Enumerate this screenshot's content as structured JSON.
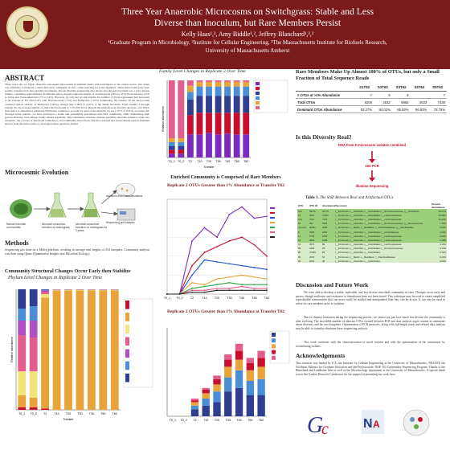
{
  "header": {
    "title_line1": "Three Year Anaerobic Microcosms on Switchgrass: Stable and Less",
    "title_line2": "Diverse than Inoculum, but Rare Members Persist",
    "authors": "Kelly Haas¹,², Amy Biddle¹,², Jeffrey Blanchard¹,²,³",
    "affil_line1": "¹Graduate Program in Microbiology, ²Institute for Cellular Engineering, ³The Massachusetts Institute for Biofuels Research,",
    "affil_line2": "University of Massachusetts Amherst"
  },
  "abstract": {
    "heading": "ABSTRACT",
    "text": "Three years ago, we began anaerobic soil-seeded microcosms in minimal media with switchgrass as the carbon source. Our intent was ultimately to maintain a stable microbial community in vitro, while selecting for active members. These microcosms have been serially transferred in five parallel experiments. Recent Illumina sequencing data shows that the soil inoculum was a very diverse sample, containing approximately 30 different phyla, though composed mainly of Acidobacteria (26% to 41%) Proteobacteria (15% to 33%), and Verrucomicrobia (7% to 24%). However, by only the second transfer, the number of phyla represented had decreased to an average of 8.6 (SD=1.67) with Proteobacteria (~3%) and Firmicutes (~95%) dominating. By transfer 30 the microcosms consisted almost entirely of Firmicutes (>99%), though only 0.96% to 0.97% of the initial inoculum. From transfer 2 through transfer 62, the average number of phyla had decreased to 7.55 (SD=0.21). Despite the phylum level diversity decrease, rare OTUs (less than 1% abundance) within the Firmicutes continue to account for most of the diversity we see (~97% of OTUs) at transfer 62. Through serial transfer, we have developed a stable and presumably specialized microbial community, while maintaining high species diversity, even among closely related organisms. This community structure conjures questions about the existence of the rare biosphere, the concept of functional redundancy, and community interactions. We have isolated and characterized several abundant species from the microcosms, to investigate these questions further."
  },
  "evolution": {
    "heading": "Microcosmic Evolution",
    "labels": [
      "Natural microbial communities",
      "Microbial consortium selection on switchgrass",
      "Microbial consortium evolution on switchgrass for 3 years",
      "Isolations and Characterizations",
      "Sequencing and analysis"
    ]
  },
  "methods": {
    "heading": "Methods",
    "text": "Sequencing was done on a MiSeq platform, resulting in average read lengths of 254 basepairs. Community analysis was done using Qiime (Quantitative Insights into Microbial Ecology)."
  },
  "phylum": {
    "heading": "Community Structural Changes Occur Early  then Stabilize",
    "subtitle": "Phylum Level Changes in Replicate 2 Over Time",
    "ylabel": "Relative abundance",
    "xlabel": "Transfer"
  },
  "family": {
    "subtitle": "Family Level Changes in Replicate 2 Over Time",
    "ylabel": "Relative abundance",
    "xlabel": "Transfer"
  },
  "enriched": {
    "heading": "Enriched Community is Comprised of  Rare Members",
    "subtitle": "Replicate 2 OTUs Greater than 1% Abundance at Transfer T62"
  },
  "lesser": {
    "subtitle": "Replicate 2 OTUs Greater than 1% Abundance at Transfer T62"
  },
  "rare": {
    "heading": "Rare Members Make Up Almost 100% of OTUs, but only a Small Fraction of Total Sequence Reads",
    "columns": [
      "",
      "S1T62",
      "S2T62",
      "S3T62",
      "S4T62",
      "S5T62"
    ],
    "rows": [
      [
        "# OTUs at >1% Abundance",
        "7",
        "9",
        "8",
        "",
        "7"
      ],
      [
        "Total OTUs",
        "6208",
        "4632",
        "6962",
        "4633",
        "7438"
      ],
      [
        "Dominant OTUs Abundance",
        "83.27%",
        "84.02%",
        "85.83%",
        "86.83%",
        "78.75%"
      ]
    ]
  },
  "diversity": {
    "heading": "Is this Diversity Real?",
    "box_lines": [
      "DNA from 8 microcosm isolates combined"
    ],
    "arrow_label": "16S PCR",
    "result": "Illumina Sequencing"
  },
  "shift": {
    "caption_bold": "Table 1.",
    "caption_ital": " The Shift Between Real and Artifactual OTUs",
    "headers": [
      "OTU",
      "OTU ID",
      "Abundance",
      "Taxonomy",
      "Percent Abundance"
    ],
    "rows": [
      [
        "104",
        "897s5",
        "24778",
        "f__Firmicutes; c__Clostridia; o__Clostridiales; f__Ruminococcaceae; g__Clostridium",
        "45.01%"
      ],
      [
        "16",
        "4501",
        "11054",
        "f__Firmicutes; c__Clostridia; o__Clostridiales; f__Lachnospiraceae",
        "20.08%"
      ],
      [
        "124",
        "7501",
        "7403",
        "f__Firmicutes; c__Clostridia; o__Clostridiales; f__Lachnospiraceae",
        "13.44%"
      ],
      [
        "18",
        "302",
        "3940",
        "f__Firmicutes; c__Clostridia; o__Clostridiales; f__Ruminococcaceae; g__Ruminococcus",
        "7.16%"
      ],
      [
        "4 (unclr)",
        "8209s",
        "2938",
        "f__Firmicutes; c__Bacilli; o__Bacillales; f__Paenibacillaceae; g__Paenibacillus",
        "5.34%"
      ],
      [
        "8",
        "4506",
        "2254",
        "f__Firmicutes; c__Clostridia; o__Clostridiales; f__Clostridiaceae",
        "4.09%"
      ],
      [
        "14",
        "5768",
        "1650",
        "f__Firmicutes; c__Clostridia; o__Clostridiales; f__Lachnospiraceae",
        "3.00%"
      ],
      [
        "15",
        "3565",
        "1088",
        "f__Firmicutes; c__Clostridia; o__Clostridiales; f__Lachnospiraceae",
        "1.98%"
      ],
      [
        "13",
        "3572",
        "89",
        "f__Firmicutes; c__Clostridia; o__Clostridiales; f__Lachnospiraceae",
        "0.16%"
      ],
      [
        "55",
        "4400",
        "78",
        "f__Firmicutes; c__Clostridia; o__Clostridiales; f__Ruminococcaceae",
        "0.14%"
      ],
      [
        "80",
        "27495",
        "65",
        "f__Firmicutes; c__Clostridia; o__Clostridiales",
        "0.12%"
      ],
      [
        "83",
        "2633",
        "54",
        "f__Firmicutes; c__Bacilli; o__Bacillales; f__Paenibacillaceae",
        "0.10%"
      ],
      [
        "86",
        "3091",
        "48",
        "f__Firmicutes; c__Clostridia; o__Clostridiales",
        "0.09%"
      ]
    ]
  },
  "discussion": {
    "heading": "Discussion and Future Work",
    "p1": "We were able to develop a stable, replicable, and less diverse microbial community in vitro. Changes occur early and persist, though resilience and resistance to disturbance have not been tested. This technique may be used to create simplified reproducible communities that can more easily be studied and manipulated than they can be in situ. It can also be used to select for rare members prior to isolation.",
    "p2": "Due to chimera formation during the sequencing process, we cannot say just how much less diverse the community is after evolving. The incredible number of aberrant OTUs formed between PCR and data analysis urges caution in statements about diversity and the rare biosphere. Optimization of PCR protocols, along with full-length reads and refined data analysis may be able to someday eliminate these sequencing artifacts.",
    "p3": "This work continues with the characterization of novel isolates and with the optimization of the community by recombining isolates."
  },
  "ack": {
    "heading": "Acknowledgements",
    "text": "This research was funded by ICE, the Institute for Cellular Engineering at the University of Massachusetts; NEAGEP, the Northeast Alliance for Graduate Education and the Professoriate; DOE JGI Community Sequencing Program. Thanks to the Blanchard and Leadbetter labs as well as the Microbiology department at the University of Massachusetts. A special thank you to the Gordon Research Conference for the support in presenting my work here."
  },
  "chart_data": [
    {
      "type": "bar",
      "name": "phylum-level-stacked",
      "title": "Phylum Level Changes in Replicate 2 Over Time",
      "xlabel": "Transfer",
      "ylabel": "Relative abundance",
      "categories": [
        "T0_1",
        "T0_2",
        "T2",
        "T10",
        "T20",
        "T30",
        "T40",
        "T50",
        "T62"
      ],
      "ylim": [
        0,
        1
      ],
      "series": [
        {
          "color": "#c8102e",
          "values": [
            0.02,
            0.02,
            0.01,
            0.0,
            0.0,
            0.0,
            0.0,
            0.0,
            0.0
          ]
        },
        {
          "color": "#e8a33a",
          "values": [
            0.1,
            0.08,
            0.92,
            0.99,
            0.99,
            0.99,
            0.99,
            0.99,
            0.99
          ]
        },
        {
          "color": "#f4e27a",
          "values": [
            0.2,
            0.22,
            0.03,
            0.005,
            0.005,
            0.005,
            0.005,
            0.005,
            0.005
          ]
        },
        {
          "color": "#e35d8f",
          "values": [
            0.3,
            0.28,
            0.02,
            0.002,
            0.002,
            0.002,
            0.002,
            0.002,
            0.002
          ]
        },
        {
          "color": "#b04fc4",
          "values": [
            0.12,
            0.14,
            0.01,
            0.001,
            0.001,
            0.001,
            0.001,
            0.001,
            0.001
          ]
        },
        {
          "color": "#4a8fd6",
          "values": [
            0.1,
            0.12,
            0.005,
            0.001,
            0.001,
            0.001,
            0.001,
            0.001,
            0.001
          ]
        },
        {
          "color": "#2f3e8f",
          "values": [
            0.16,
            0.14,
            0.005,
            0.001,
            0.001,
            0.001,
            0.001,
            0.001,
            0.001
          ]
        }
      ],
      "legend": "right"
    },
    {
      "type": "bar",
      "name": "family-level-stacked",
      "title": "Family Level Changes in Replicate 2 Over Time",
      "xlabel": "Transfer",
      "ylabel": "Relative abundance",
      "categories": [
        "T0_1",
        "T0_2",
        "T2",
        "T10",
        "T20",
        "T30",
        "T40",
        "T50",
        "T62"
      ],
      "ylim": [
        0,
        1
      ],
      "series": [
        {
          "color": "#7b2cbf",
          "values": [
            0.05,
            0.05,
            0.3,
            0.3,
            0.32,
            0.3,
            0.31,
            0.3,
            0.3
          ]
        },
        {
          "color": "#c8102e",
          "values": [
            0.05,
            0.05,
            0.25,
            0.28,
            0.26,
            0.28,
            0.27,
            0.28,
            0.28
          ]
        },
        {
          "color": "#2f3e8f",
          "values": [
            0.05,
            0.05,
            0.2,
            0.22,
            0.22,
            0.22,
            0.22,
            0.22,
            0.22
          ]
        },
        {
          "color": "#4a8fd6",
          "values": [
            0.05,
            0.05,
            0.1,
            0.12,
            0.12,
            0.12,
            0.12,
            0.12,
            0.12
          ]
        },
        {
          "color": "#e8a33a",
          "values": [
            0.05,
            0.05,
            0.08,
            0.06,
            0.06,
            0.06,
            0.06,
            0.06,
            0.06
          ]
        },
        {
          "color": "#e35d8f",
          "values": [
            0.75,
            0.75,
            0.07,
            0.02,
            0.02,
            0.02,
            0.02,
            0.02,
            0.02
          ]
        }
      ],
      "legend": "right"
    },
    {
      "type": "line",
      "name": "enriched-otus-lines",
      "title": "Replicate 2 OTUs Greater than 1% Abundance at Transfer T62",
      "x": [
        "T0_1",
        "T0_2",
        "T2",
        "T10",
        "T20",
        "T30",
        "T40",
        "T50",
        "T62"
      ],
      "ylim": [
        0,
        0.5
      ],
      "series": [
        {
          "color": "#7b2cbf",
          "values": [
            0.0,
            0.0,
            0.28,
            0.35,
            0.3,
            0.42,
            0.46,
            0.4,
            0.41
          ]
        },
        {
          "color": "#c8102e",
          "values": [
            0.0,
            0.0,
            0.15,
            0.22,
            0.25,
            0.28,
            0.3,
            0.26,
            0.2
          ]
        },
        {
          "color": "#1f4fd6",
          "values": [
            0.0,
            0.0,
            0.1,
            0.18,
            0.17,
            0.16,
            0.15,
            0.14,
            0.13
          ]
        },
        {
          "color": "#e8a33a",
          "values": [
            0.0,
            0.0,
            0.06,
            0.05,
            0.08,
            0.09,
            0.1,
            0.09,
            0.08
          ]
        },
        {
          "color": "#2aa84a",
          "values": [
            0.0,
            0.0,
            0.03,
            0.04,
            0.05,
            0.06,
            0.05,
            0.05,
            0.05
          ]
        },
        {
          "color": "#e35d8f",
          "values": [
            0.0,
            0.0,
            0.02,
            0.02,
            0.03,
            0.03,
            0.04,
            0.03,
            0.03
          ]
        },
        {
          "color": "#222222",
          "values": [
            0.0,
            0.0,
            0.01,
            0.01,
            0.02,
            0.02,
            0.02,
            0.02,
            0.02
          ]
        }
      ],
      "legend": "right"
    },
    {
      "type": "bar",
      "name": "lesser-otus-stacked",
      "title": "Replicate 2 OTUs Greater than 1% Abundance at Transfer T62",
      "categories": [
        "T0_1",
        "T0_2",
        "T2",
        "T10",
        "T20",
        "T30",
        "T40",
        "T50",
        "T62"
      ],
      "ylim": [
        0,
        0.05
      ],
      "series": [
        {
          "color": "#2f3e8f",
          "values": [
            0.0,
            0.0,
            0.004,
            0.006,
            0.008,
            0.014,
            0.016,
            0.012,
            0.012
          ]
        },
        {
          "color": "#4a8fd6",
          "values": [
            0.0,
            0.0,
            0.002,
            0.004,
            0.006,
            0.008,
            0.01,
            0.008,
            0.009
          ]
        },
        {
          "color": "#e8a33a",
          "values": [
            0.0,
            0.0,
            0.002,
            0.003,
            0.004,
            0.006,
            0.006,
            0.006,
            0.007
          ]
        },
        {
          "color": "#c8102e",
          "values": [
            0.0,
            0.0,
            0.001,
            0.002,
            0.003,
            0.004,
            0.005,
            0.004,
            0.005
          ]
        },
        {
          "color": "#e35d8f",
          "values": [
            0.0,
            0.0,
            0.001,
            0.001,
            0.002,
            0.003,
            0.004,
            0.003,
            0.004
          ]
        }
      ],
      "legend": "right"
    }
  ]
}
